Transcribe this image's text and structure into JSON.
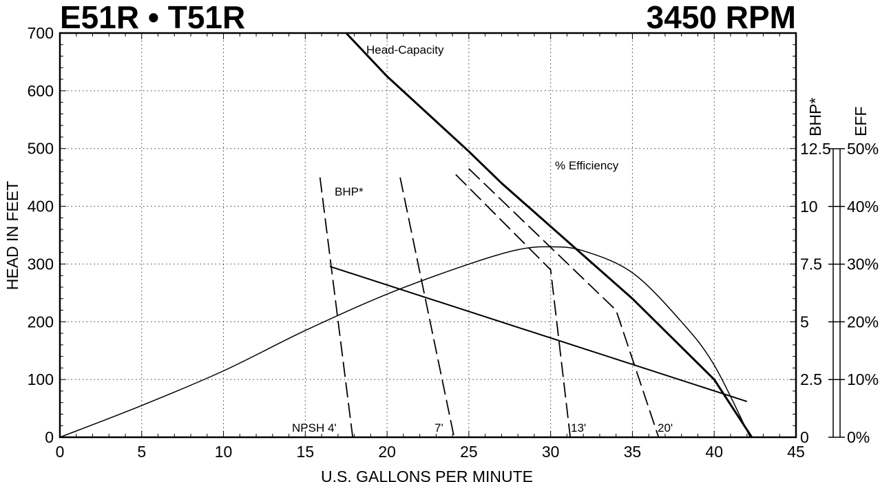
{
  "chart_data": {
    "type": "line",
    "title_left": "E51R • T51R",
    "title_right": "3450 RPM",
    "xlabel": "U.S. GALLONS PER MINUTE",
    "ylabel": "HEAD IN FEET",
    "y2label": "BHP*",
    "y3label": "EFF",
    "xlim": [
      0,
      45
    ],
    "ylim": [
      0,
      700
    ],
    "y2lim": [
      0,
      12.5
    ],
    "y3lim": [
      0,
      50
    ],
    "grid": true,
    "x_ticks": [
      "0",
      "5",
      "10",
      "15",
      "20",
      "25",
      "30",
      "35",
      "40",
      "45"
    ],
    "y_ticks": [
      "0",
      "100",
      "200",
      "300",
      "400",
      "500",
      "600",
      "700"
    ],
    "y2_ticks": [
      "0",
      "2.5",
      "5",
      "7.5",
      "10",
      "12.5"
    ],
    "y3_ticks": [
      "0%",
      "10%",
      "20%",
      "30%",
      "40%",
      "50%"
    ],
    "series": [
      {
        "name": "Head-Capacity",
        "axis": "head",
        "style": "thick",
        "points": [
          [
            17.5,
            700
          ],
          [
            20,
            625
          ],
          [
            25,
            495
          ],
          [
            27,
            440
          ],
          [
            30,
            365
          ],
          [
            35,
            240
          ],
          [
            40,
            100
          ],
          [
            42.3,
            0
          ]
        ]
      },
      {
        "name": "% Efficiency",
        "axis": "eff",
        "style": "thin",
        "points": [
          [
            0,
            0
          ],
          [
            5,
            5.5
          ],
          [
            10,
            11.5
          ],
          [
            15,
            18.5
          ],
          [
            20,
            24.8
          ],
          [
            25,
            30
          ],
          [
            28,
            32.5
          ],
          [
            30,
            33
          ],
          [
            32,
            32.3
          ],
          [
            35,
            28.5
          ],
          [
            38,
            20
          ],
          [
            40,
            12.5
          ],
          [
            42.2,
            0
          ]
        ]
      },
      {
        "name": "BHP*",
        "axis": "bhp",
        "style": "medium",
        "points": [
          [
            16.5,
            7.4
          ],
          [
            42,
            1.55
          ]
        ]
      }
    ],
    "npsh_curves": [
      {
        "name": "NPSH 4'",
        "points": [
          [
            15.9,
            450
          ],
          [
            17.9,
            0
          ]
        ]
      },
      {
        "name": "7'",
        "points": [
          [
            20.8,
            450
          ],
          [
            24.1,
            0
          ]
        ]
      },
      {
        "name": "13'",
        "points": [
          [
            24.2,
            455
          ],
          [
            30,
            290
          ],
          [
            31.2,
            0
          ]
        ]
      },
      {
        "name": "20'",
        "points": [
          [
            25,
            465
          ],
          [
            34,
            220
          ],
          [
            36.6,
            0
          ]
        ]
      }
    ],
    "labels": {
      "head_capacity": "Head-Capacity",
      "efficiency": "% Efficiency",
      "bhp": "BHP*"
    }
  }
}
